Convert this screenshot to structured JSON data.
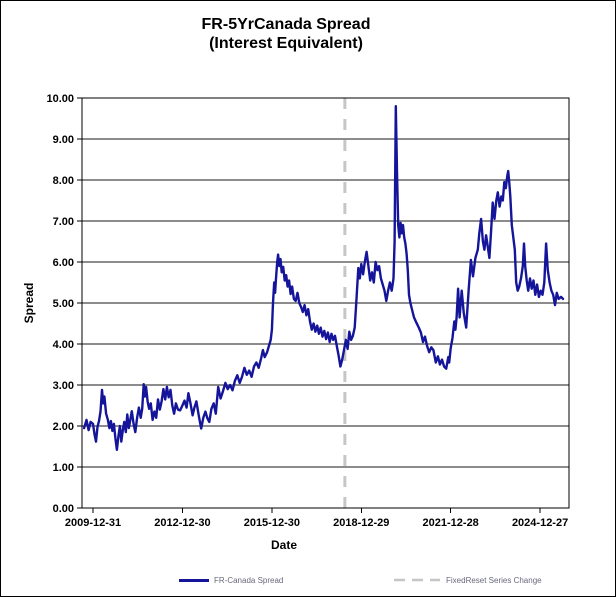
{
  "window": {
    "background": "#ffffff",
    "border_color": "#000000"
  },
  "title": {
    "line1": "FR-5YrCanada Spread",
    "line2": "(Interest Equivalent)"
  },
  "axes": {
    "x_label": "Date",
    "y_label": "Spread"
  },
  "legend": {
    "entries": [
      {
        "label": "FR-Canada Spread",
        "swatch": "solid-line",
        "color": "#15159B"
      },
      {
        "label": "FixedReset Series Change",
        "swatch": "dashed-line",
        "color": "#BDBDBD"
      }
    ]
  },
  "chart_data": {
    "type": "line",
    "title": "FR-5YrCanada Spread (Interest Equivalent)",
    "xlabel": "Date",
    "ylabel": "Spread",
    "ylim": [
      0,
      10
    ],
    "ytick_labels": [
      "0.00",
      "1.00",
      "2.00",
      "3.00",
      "4.00",
      "5.00",
      "6.00",
      "7.00",
      "8.00",
      "9.00",
      "10.00"
    ],
    "grid": "horizontal-only",
    "grid_color": "#1a1a1a",
    "legend_position": "bottom-center",
    "x_domain_years": [
      2009.63,
      2025.97
    ],
    "xticks": [
      {
        "year": 2010.0,
        "label": "2009-12-31"
      },
      {
        "year": 2013.0,
        "label": "2012-12-30"
      },
      {
        "year": 2016.0,
        "label": "2015-12-30"
      },
      {
        "year": 2019.0,
        "label": "2018-12-29"
      },
      {
        "year": 2022.0,
        "label": "2021-12-28"
      },
      {
        "year": 2025.0,
        "label": "2024-12-27"
      }
    ],
    "series": [
      {
        "name": "FR-Canada Spread",
        "type": "line",
        "color": "#15159B",
        "stroke_width": 2.4,
        "points": [
          [
            2009.7,
            1.95
          ],
          [
            2009.78,
            2.15
          ],
          [
            2009.85,
            1.9
          ],
          [
            2009.92,
            2.1
          ],
          [
            2010.0,
            2.05
          ],
          [
            2010.05,
            1.8
          ],
          [
            2010.1,
            1.62
          ],
          [
            2010.15,
            1.98
          ],
          [
            2010.2,
            2.12
          ],
          [
            2010.25,
            2.35
          ],
          [
            2010.3,
            2.88
          ],
          [
            2010.34,
            2.55
          ],
          [
            2010.38,
            2.72
          ],
          [
            2010.44,
            2.3
          ],
          [
            2010.5,
            2.15
          ],
          [
            2010.55,
            1.95
          ],
          [
            2010.6,
            2.12
          ],
          [
            2010.65,
            1.88
          ],
          [
            2010.7,
            2.05
          ],
          [
            2010.75,
            1.7
          ],
          [
            2010.8,
            1.42
          ],
          [
            2010.85,
            1.75
          ],
          [
            2010.9,
            2.0
          ],
          [
            2010.95,
            1.62
          ],
          [
            2011.0,
            1.9
          ],
          [
            2011.05,
            2.1
          ],
          [
            2011.1,
            1.85
          ],
          [
            2011.15,
            2.28
          ],
          [
            2011.2,
            1.95
          ],
          [
            2011.25,
            2.15
          ],
          [
            2011.3,
            2.36
          ],
          [
            2011.36,
            2.05
          ],
          [
            2011.42,
            1.85
          ],
          [
            2011.48,
            2.2
          ],
          [
            2011.54,
            2.45
          ],
          [
            2011.6,
            2.2
          ],
          [
            2011.65,
            2.42
          ],
          [
            2011.7,
            3.02
          ],
          [
            2011.74,
            2.72
          ],
          [
            2011.78,
            2.95
          ],
          [
            2011.83,
            2.6
          ],
          [
            2011.88,
            2.42
          ],
          [
            2011.94,
            2.55
          ],
          [
            2012.0,
            2.15
          ],
          [
            2012.06,
            2.35
          ],
          [
            2012.12,
            2.2
          ],
          [
            2012.18,
            2.65
          ],
          [
            2012.24,
            2.4
          ],
          [
            2012.3,
            2.6
          ],
          [
            2012.36,
            2.9
          ],
          [
            2012.42,
            2.65
          ],
          [
            2012.48,
            2.95
          ],
          [
            2012.54,
            2.7
          ],
          [
            2012.6,
            2.88
          ],
          [
            2012.66,
            2.5
          ],
          [
            2012.72,
            2.3
          ],
          [
            2012.78,
            2.55
          ],
          [
            2012.85,
            2.4
          ],
          [
            2012.92,
            2.38
          ],
          [
            2013.0,
            2.5
          ],
          [
            2013.07,
            2.62
          ],
          [
            2013.14,
            2.45
          ],
          [
            2013.2,
            2.8
          ],
          [
            2013.27,
            2.55
          ],
          [
            2013.34,
            2.26
          ],
          [
            2013.4,
            2.45
          ],
          [
            2013.47,
            2.6
          ],
          [
            2013.55,
            2.25
          ],
          [
            2013.63,
            1.94
          ],
          [
            2013.7,
            2.2
          ],
          [
            2013.77,
            2.35
          ],
          [
            2013.84,
            2.18
          ],
          [
            2013.9,
            2.1
          ],
          [
            2013.97,
            2.42
          ],
          [
            2014.05,
            2.55
          ],
          [
            2014.12,
            2.3
          ],
          [
            2014.2,
            2.95
          ],
          [
            2014.28,
            2.67
          ],
          [
            2014.36,
            2.85
          ],
          [
            2014.44,
            3.05
          ],
          [
            2014.52,
            2.9
          ],
          [
            2014.6,
            3.0
          ],
          [
            2014.68,
            2.87
          ],
          [
            2014.76,
            3.1
          ],
          [
            2014.84,
            3.24
          ],
          [
            2014.92,
            3.05
          ],
          [
            2015.0,
            3.2
          ],
          [
            2015.08,
            3.42
          ],
          [
            2015.16,
            3.25
          ],
          [
            2015.24,
            3.35
          ],
          [
            2015.32,
            3.2
          ],
          [
            2015.4,
            3.45
          ],
          [
            2015.48,
            3.55
          ],
          [
            2015.56,
            3.42
          ],
          [
            2015.64,
            3.65
          ],
          [
            2015.7,
            3.85
          ],
          [
            2015.76,
            3.68
          ],
          [
            2015.84,
            3.8
          ],
          [
            2015.9,
            3.95
          ],
          [
            2015.96,
            4.1
          ],
          [
            2016.0,
            4.35
          ],
          [
            2016.04,
            5.0
          ],
          [
            2016.08,
            5.5
          ],
          [
            2016.11,
            5.25
          ],
          [
            2016.14,
            5.6
          ],
          [
            2016.18,
            6.0
          ],
          [
            2016.21,
            6.18
          ],
          [
            2016.25,
            5.9
          ],
          [
            2016.29,
            6.07
          ],
          [
            2016.33,
            5.75
          ],
          [
            2016.38,
            5.88
          ],
          [
            2016.43,
            5.55
          ],
          [
            2016.48,
            5.68
          ],
          [
            2016.53,
            5.4
          ],
          [
            2016.58,
            5.55
          ],
          [
            2016.63,
            5.22
          ],
          [
            2016.68,
            5.4
          ],
          [
            2016.74,
            5.1
          ],
          [
            2016.8,
            5.05
          ],
          [
            2016.86,
            5.25
          ],
          [
            2016.92,
            5.0
          ],
          [
            2016.98,
            4.9
          ],
          [
            2017.04,
            4.78
          ],
          [
            2017.1,
            4.95
          ],
          [
            2017.16,
            4.7
          ],
          [
            2017.22,
            4.85
          ],
          [
            2017.28,
            4.55
          ],
          [
            2017.34,
            4.35
          ],
          [
            2017.4,
            4.5
          ],
          [
            2017.46,
            4.3
          ],
          [
            2017.52,
            4.45
          ],
          [
            2017.58,
            4.25
          ],
          [
            2017.64,
            4.4
          ],
          [
            2017.7,
            4.18
          ],
          [
            2017.76,
            4.32
          ],
          [
            2017.82,
            4.12
          ],
          [
            2017.88,
            4.28
          ],
          [
            2017.94,
            4.05
          ],
          [
            2018.0,
            4.25
          ],
          [
            2018.06,
            4.1
          ],
          [
            2018.12,
            4.2
          ],
          [
            2018.18,
            3.95
          ],
          [
            2018.24,
            3.72
          ],
          [
            2018.3,
            3.45
          ],
          [
            2018.36,
            3.62
          ],
          [
            2018.42,
            3.85
          ],
          [
            2018.48,
            4.1
          ],
          [
            2018.54,
            3.88
          ],
          [
            2018.6,
            4.3
          ],
          [
            2018.66,
            4.1
          ],
          [
            2018.72,
            4.2
          ],
          [
            2018.78,
            4.4
          ],
          [
            2018.84,
            5.1
          ],
          [
            2018.9,
            5.85
          ],
          [
            2018.95,
            5.6
          ],
          [
            2019.0,
            5.95
          ],
          [
            2019.06,
            5.7
          ],
          [
            2019.12,
            6.0
          ],
          [
            2019.18,
            6.25
          ],
          [
            2019.24,
            5.9
          ],
          [
            2019.3,
            5.55
          ],
          [
            2019.36,
            5.75
          ],
          [
            2019.42,
            5.5
          ],
          [
            2019.48,
            6.0
          ],
          [
            2019.54,
            5.8
          ],
          [
            2019.6,
            5.9
          ],
          [
            2019.66,
            5.6
          ],
          [
            2019.72,
            5.45
          ],
          [
            2019.78,
            5.3
          ],
          [
            2019.84,
            5.05
          ],
          [
            2019.9,
            5.3
          ],
          [
            2019.96,
            5.5
          ],
          [
            2020.02,
            5.3
          ],
          [
            2020.08,
            5.6
          ],
          [
            2020.12,
            6.5
          ],
          [
            2020.16,
            9.8
          ],
          [
            2020.2,
            8.2
          ],
          [
            2020.24,
            6.9
          ],
          [
            2020.28,
            6.6
          ],
          [
            2020.32,
            6.95
          ],
          [
            2020.36,
            6.7
          ],
          [
            2020.4,
            6.9
          ],
          [
            2020.44,
            6.6
          ],
          [
            2020.48,
            6.45
          ],
          [
            2020.52,
            6.2
          ],
          [
            2020.56,
            5.8
          ],
          [
            2020.6,
            5.2
          ],
          [
            2020.65,
            5.0
          ],
          [
            2020.7,
            4.85
          ],
          [
            2020.77,
            4.65
          ],
          [
            2020.85,
            4.52
          ],
          [
            2020.93,
            4.4
          ],
          [
            2021.0,
            4.28
          ],
          [
            2021.07,
            4.05
          ],
          [
            2021.14,
            4.18
          ],
          [
            2021.21,
            3.95
          ],
          [
            2021.28,
            3.8
          ],
          [
            2021.35,
            3.92
          ],
          [
            2021.42,
            3.85
          ],
          [
            2021.5,
            3.55
          ],
          [
            2021.57,
            3.7
          ],
          [
            2021.64,
            3.5
          ],
          [
            2021.71,
            3.62
          ],
          [
            2021.78,
            3.45
          ],
          [
            2021.85,
            3.4
          ],
          [
            2021.92,
            3.68
          ],
          [
            2021.95,
            3.55
          ],
          [
            2022.0,
            3.9
          ],
          [
            2022.06,
            4.15
          ],
          [
            2022.12,
            4.55
          ],
          [
            2022.16,
            4.35
          ],
          [
            2022.2,
            4.65
          ],
          [
            2022.25,
            5.35
          ],
          [
            2022.3,
            4.65
          ],
          [
            2022.37,
            5.3
          ],
          [
            2022.44,
            4.75
          ],
          [
            2022.52,
            4.4
          ],
          [
            2022.6,
            5.3
          ],
          [
            2022.68,
            6.05
          ],
          [
            2022.75,
            5.65
          ],
          [
            2022.83,
            6.1
          ],
          [
            2022.91,
            6.3
          ],
          [
            2022.96,
            6.7
          ],
          [
            2023.02,
            7.05
          ],
          [
            2023.08,
            6.5
          ],
          [
            2023.13,
            6.3
          ],
          [
            2023.19,
            6.65
          ],
          [
            2023.25,
            6.35
          ],
          [
            2023.3,
            6.1
          ],
          [
            2023.36,
            6.8
          ],
          [
            2023.41,
            7.45
          ],
          [
            2023.47,
            7.05
          ],
          [
            2023.53,
            7.5
          ],
          [
            2023.58,
            7.7
          ],
          [
            2023.64,
            7.35
          ],
          [
            2023.7,
            7.6
          ],
          [
            2023.75,
            7.5
          ],
          [
            2023.8,
            7.95
          ],
          [
            2023.85,
            7.8
          ],
          [
            2023.9,
            8.1
          ],
          [
            2023.93,
            8.22
          ],
          [
            2023.97,
            7.9
          ],
          [
            2024.0,
            7.6
          ],
          [
            2024.05,
            6.9
          ],
          [
            2024.1,
            6.6
          ],
          [
            2024.15,
            6.3
          ],
          [
            2024.2,
            5.5
          ],
          [
            2024.25,
            5.3
          ],
          [
            2024.3,
            5.4
          ],
          [
            2024.36,
            5.6
          ],
          [
            2024.42,
            5.9
          ],
          [
            2024.46,
            6.45
          ],
          [
            2024.5,
            5.9
          ],
          [
            2024.55,
            5.55
          ],
          [
            2024.6,
            5.3
          ],
          [
            2024.66,
            5.6
          ],
          [
            2024.72,
            5.35
          ],
          [
            2024.78,
            5.55
          ],
          [
            2024.84,
            5.2
          ],
          [
            2024.9,
            5.45
          ],
          [
            2024.96,
            5.15
          ],
          [
            2025.02,
            5.3
          ],
          [
            2025.08,
            5.2
          ],
          [
            2025.14,
            5.5
          ],
          [
            2025.2,
            6.45
          ],
          [
            2025.26,
            5.8
          ],
          [
            2025.32,
            5.5
          ],
          [
            2025.38,
            5.3
          ],
          [
            2025.44,
            5.2
          ],
          [
            2025.5,
            4.95
          ],
          [
            2025.56,
            5.25
          ],
          [
            2025.62,
            5.1
          ],
          [
            2025.7,
            5.15
          ],
          [
            2025.77,
            5.1
          ]
        ]
      },
      {
        "name": "FixedReset Series Change",
        "type": "vline",
        "color": "#C6C6C6",
        "stroke_width": 3,
        "dash": [
          11,
          10
        ],
        "x_year": 2018.45
      }
    ]
  }
}
